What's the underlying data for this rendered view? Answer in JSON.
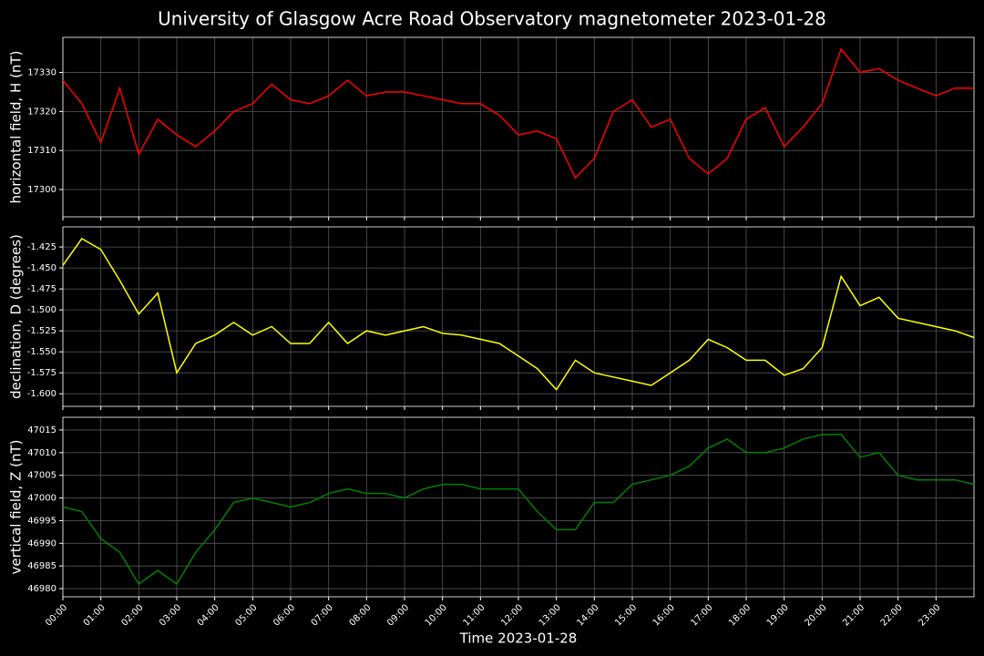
{
  "chart_data": [
    {
      "type": "line",
      "title": "University of Glasgow Acre Road Observatory magnetometer 2023-01-28",
      "ylabel": "horizontal field, H (nT)",
      "color": "#ff0000",
      "grid": true,
      "ylim": [
        17293,
        17339
      ],
      "yticks": [
        17300,
        17310,
        17320,
        17330
      ],
      "x": [
        0,
        0.5,
        1,
        1.5,
        2,
        2.5,
        3,
        3.5,
        4,
        4.5,
        5,
        5.5,
        6,
        6.5,
        7,
        7.5,
        8,
        8.5,
        9,
        9.5,
        10,
        10.5,
        11,
        11.5,
        12,
        12.5,
        13,
        13.5,
        14,
        14.5,
        15,
        15.5,
        16,
        16.5,
        17,
        17.5,
        18,
        18.5,
        19,
        19.5,
        20,
        20.5,
        21,
        21.5,
        22,
        22.5,
        23,
        23.5,
        24
      ],
      "values": [
        17328,
        17322,
        17312,
        17326,
        17309,
        17318,
        17314,
        17311,
        17315,
        17320,
        17322,
        17327,
        17323,
        17322,
        17324,
        17328,
        17324,
        17325,
        17325,
        17324,
        17323,
        17322,
        17322,
        17319,
        17314,
        17315,
        17313,
        17303,
        17308,
        17320,
        17323,
        17316,
        17318,
        17308,
        17304,
        17308,
        17318,
        17321,
        17311,
        17316,
        17322,
        17336,
        17330,
        17331,
        17328,
        17326,
        17324,
        17326,
        17326
      ]
    },
    {
      "type": "line",
      "ylabel": "declination, D (degrees)",
      "color": "#ffff00",
      "grid": true,
      "ylim": [
        -1.615,
        -1.401
      ],
      "yticks": [
        -1.425,
        {
          "value": -1.45,
          "label": "-1.450"
        },
        -1.475,
        {
          "value": -1.5,
          "label": "-1.500"
        },
        -1.525,
        {
          "value": -1.55,
          "label": "-1.550"
        },
        -1.575,
        {
          "value": -1.6,
          "label": "-1.600"
        }
      ],
      "x": [
        0,
        0.5,
        1,
        1.5,
        2,
        2.5,
        3,
        3.5,
        4,
        4.5,
        5,
        5.5,
        6,
        6.5,
        7,
        7.5,
        8,
        8.5,
        9,
        9.5,
        10,
        10.5,
        11,
        11.5,
        12,
        12.5,
        13,
        13.5,
        14,
        14.5,
        15,
        15.5,
        16,
        16.5,
        17,
        17.5,
        18,
        18.5,
        19,
        19.5,
        20,
        20.5,
        21,
        21.5,
        22,
        22.5,
        23,
        23.5,
        24
      ],
      "values": [
        -1.447,
        -1.415,
        -1.428,
        -1.465,
        -1.505,
        -1.48,
        -1.575,
        -1.54,
        -1.53,
        -1.515,
        -1.53,
        -1.52,
        -1.54,
        -1.54,
        -1.515,
        -1.54,
        -1.525,
        -1.53,
        -1.525,
        -1.52,
        -1.528,
        -1.53,
        -1.535,
        -1.54,
        -1.555,
        -1.57,
        -1.595,
        -1.56,
        -1.575,
        -1.58,
        -1.585,
        -1.59,
        -1.575,
        -1.56,
        -1.535,
        -1.545,
        -1.56,
        -1.56,
        -1.578,
        -1.57,
        -1.545,
        -1.46,
        -1.495,
        -1.485,
        -1.51,
        -1.515,
        -1.52,
        -1.525,
        -1.533
      ]
    },
    {
      "type": "line",
      "ylabel": "vertical field, Z (nT)",
      "xlabel": "Time 2023-01-28",
      "color": "#008000",
      "grid": true,
      "ylim": [
        46978.2,
        47017.8
      ],
      "yticks": [
        46980,
        46985,
        46990,
        46995,
        47000,
        47005,
        47010,
        47015
      ],
      "xlim": [
        0,
        24
      ],
      "xticks": [
        {
          "value": 0,
          "label": "00:00"
        },
        {
          "value": 1,
          "label": "01:00"
        },
        {
          "value": 2,
          "label": "02:00"
        },
        {
          "value": 3,
          "label": "03:00"
        },
        {
          "value": 4,
          "label": "04:00"
        },
        {
          "value": 5,
          "label": "05:00"
        },
        {
          "value": 6,
          "label": "06:00"
        },
        {
          "value": 7,
          "label": "07:00"
        },
        {
          "value": 8,
          "label": "08:00"
        },
        {
          "value": 9,
          "label": "09:00"
        },
        {
          "value": 10,
          "label": "10:00"
        },
        {
          "value": 11,
          "label": "11:00"
        },
        {
          "value": 12,
          "label": "12:00"
        },
        {
          "value": 13,
          "label": "13:00"
        },
        {
          "value": 14,
          "label": "14:00"
        },
        {
          "value": 15,
          "label": "15:00"
        },
        {
          "value": 16,
          "label": "16:00"
        },
        {
          "value": 17,
          "label": "17:00"
        },
        {
          "value": 18,
          "label": "18:00"
        },
        {
          "value": 19,
          "label": "19:00"
        },
        {
          "value": 20,
          "label": "20:00"
        },
        {
          "value": 21,
          "label": "21:00"
        },
        {
          "value": 22,
          "label": "22:00"
        },
        {
          "value": 23,
          "label": "23:00"
        }
      ],
      "x": [
        0,
        0.5,
        1,
        1.5,
        2,
        2.5,
        3,
        3.5,
        4,
        4.5,
        5,
        5.5,
        6,
        6.5,
        7,
        7.5,
        8,
        8.5,
        9,
        9.5,
        10,
        10.5,
        11,
        11.5,
        12,
        12.5,
        13,
        13.5,
        14,
        14.5,
        15,
        15.5,
        16,
        16.5,
        17,
        17.5,
        18,
        18.5,
        19,
        19.5,
        20,
        20.5,
        21,
        21.5,
        22,
        22.5,
        23,
        23.5,
        24
      ],
      "values": [
        46998,
        46997,
        46991,
        46988,
        46981,
        46984,
        46981,
        46988,
        46993,
        46999,
        47000,
        46999,
        46998,
        46999,
        47001,
        47002,
        47001,
        47001,
        47000,
        47002,
        47003,
        47003,
        47002,
        47002,
        47002,
        46997,
        46993,
        46993,
        46999,
        46999,
        47003,
        47004,
        47005,
        47007,
        47011,
        47013,
        47010,
        47010,
        47011,
        47013,
        47014,
        47014,
        47009,
        47010,
        47005,
        47004,
        47004,
        47004,
        47003
      ]
    }
  ]
}
